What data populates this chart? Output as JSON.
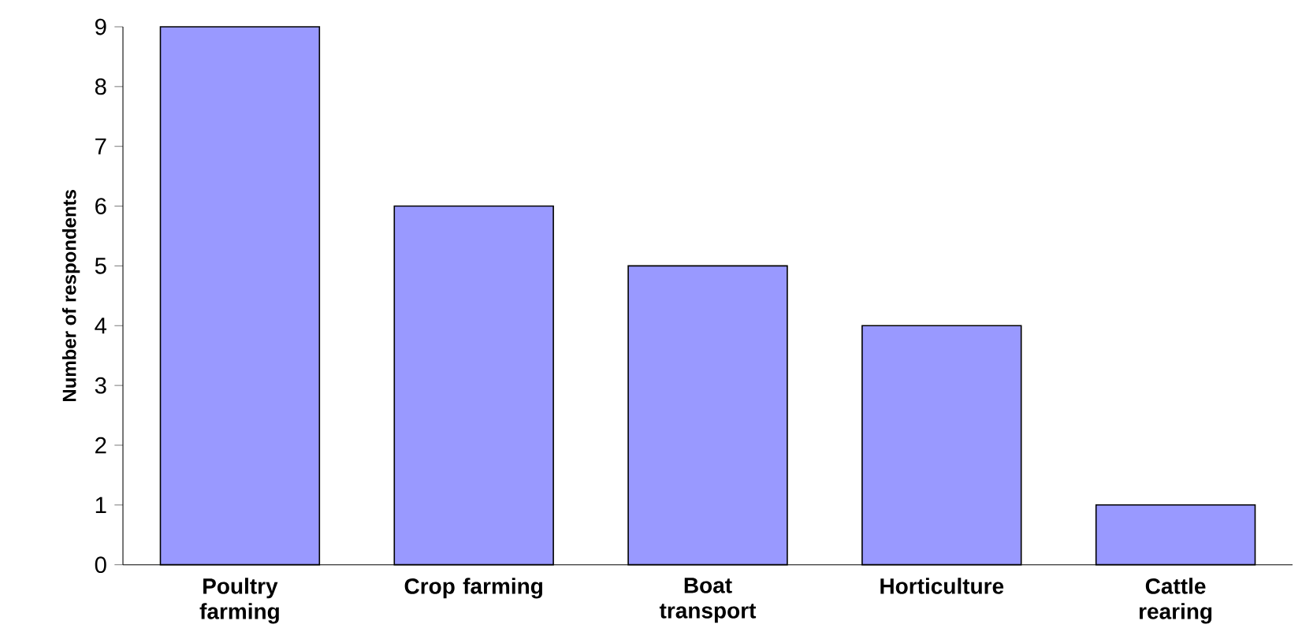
{
  "chart_data": {
    "type": "bar",
    "ylabel": "Number of respondents",
    "categories": [
      "Poultry farming",
      "Crop farming",
      "Boat transport",
      "Horticulture",
      "Cattle rearing"
    ],
    "values": [
      9,
      6,
      5,
      4,
      1
    ],
    "color": "#9999ff",
    "ylim": [
      0,
      9
    ],
    "yticks": [
      0,
      1,
      2,
      3,
      4,
      5,
      6,
      7,
      8,
      9
    ]
  }
}
